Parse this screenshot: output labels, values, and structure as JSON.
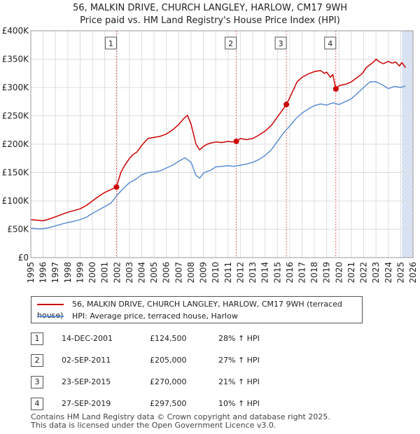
{
  "title": {
    "line1": "56, MALKIN DRIVE, CHURCH LANGLEY, HARLOW, CM17 9WH",
    "line2": "Price paid vs. HM Land Registry's House Price Index (HPI)"
  },
  "colors": {
    "property": "#cc0000",
    "hpi": "#5b8ed6",
    "marker": "#e06060",
    "shade": "#dde6f5",
    "grid": "#dddddd"
  },
  "chart_data": {
    "type": "line",
    "title": "56, MALKIN DRIVE, CHURCH LANGLEY, HARLOW, CM17 9WH — Price paid vs. HM Land Registry's House Price Index (HPI)",
    "xlabel": "",
    "ylabel": "",
    "xlim": [
      1995,
      2026
    ],
    "ylim": [
      0,
      400000
    ],
    "x_ticks": [
      "1995",
      "1996",
      "1997",
      "1998",
      "1999",
      "2000",
      "2001",
      "2002",
      "2003",
      "2004",
      "2005",
      "2006",
      "2007",
      "2008",
      "2009",
      "2010",
      "2011",
      "2012",
      "2013",
      "2014",
      "2015",
      "2016",
      "2017",
      "2018",
      "2019",
      "2020",
      "2021",
      "2022",
      "2023",
      "2024",
      "2025",
      "2026"
    ],
    "y_ticks": [
      {
        "value": 0,
        "label": "£0"
      },
      {
        "value": 50000,
        "label": "£50K"
      },
      {
        "value": 100000,
        "label": "£100K"
      },
      {
        "value": 150000,
        "label": "£150K"
      },
      {
        "value": 200000,
        "label": "£200K"
      },
      {
        "value": 250000,
        "label": "£250K"
      },
      {
        "value": 300000,
        "label": "£300K"
      },
      {
        "value": 350000,
        "label": "£350K"
      },
      {
        "value": 400000,
        "label": "£400K"
      }
    ],
    "grid": true,
    "future_shade_from": 2025.1,
    "series": [
      {
        "name": "56, MALKIN DRIVE, CHURCH LANGLEY, HARLOW, CM17 9WH (terraced house)",
        "color": "#cc0000",
        "x": [
          1995,
          1995.5,
          1996,
          1996.5,
          1997,
          1997.5,
          1998,
          1998.5,
          1999,
          1999.5,
          2000,
          2000.5,
          2001,
          2001.5,
          2001.95,
          2002.3,
          2002.6,
          2003,
          2003.3,
          2003.6,
          2004,
          2004.5,
          2005,
          2005.5,
          2006,
          2006.5,
          2007,
          2007.4,
          2007.7,
          2008,
          2008.4,
          2008.7,
          2009,
          2009.3,
          2009.6,
          2010,
          2010.5,
          2011,
          2011.3,
          2011.67,
          2012,
          2012.5,
          2013,
          2013.5,
          2014,
          2014.5,
          2015,
          2015.4,
          2015.73,
          2016,
          2016.3,
          2016.6,
          2017,
          2017.5,
          2018,
          2018.5,
          2018.8,
          2019,
          2019.3,
          2019.5,
          2019.74,
          2020,
          2020.3,
          2020.6,
          2021,
          2021.5,
          2021.9,
          2022.2,
          2022.5,
          2022.8,
          2023,
          2023.3,
          2023.6,
          2024,
          2024.3,
          2024.6,
          2024.9,
          2025.1,
          2025.4
        ],
        "values": [
          67000,
          66000,
          65000,
          68000,
          72000,
          76000,
          80000,
          83000,
          86000,
          92000,
          100000,
          108000,
          115000,
          120000,
          124500,
          150000,
          162000,
          175000,
          182000,
          186000,
          198000,
          210000,
          212000,
          214000,
          218000,
          225000,
          235000,
          245000,
          251000,
          235000,
          200000,
          190000,
          196000,
          200000,
          202000,
          204000,
          203000,
          205000,
          204000,
          205000,
          210000,
          208000,
          210000,
          216000,
          223000,
          233000,
          248000,
          260000,
          270000,
          282000,
          296000,
          310000,
          318000,
          324000,
          328000,
          330000,
          325000,
          327000,
          318000,
          323000,
          297500,
          303000,
          305000,
          306000,
          310000,
          318000,
          325000,
          335000,
          340000,
          345000,
          350000,
          345000,
          342000,
          346000,
          343000,
          345000,
          338000,
          344000,
          335000
        ]
      },
      {
        "name": "HPI: Average price, terraced house, Harlow",
        "color": "#5b8ed6",
        "x": [
          1995,
          1995.5,
          1996,
          1996.5,
          1997,
          1997.5,
          1998,
          1998.5,
          1999,
          1999.5,
          2000,
          2000.5,
          2001,
          2001.5,
          2002,
          2002.5,
          2003,
          2003.5,
          2004,
          2004.5,
          2005,
          2005.5,
          2006,
          2006.5,
          2007,
          2007.5,
          2008,
          2008.4,
          2008.7,
          2009,
          2009.3,
          2009.6,
          2010,
          2010.5,
          2011,
          2011.5,
          2012,
          2012.5,
          2013,
          2013.5,
          2014,
          2014.5,
          2015,
          2015.5,
          2016,
          2016.5,
          2017,
          2017.5,
          2018,
          2018.5,
          2019,
          2019.5,
          2020,
          2020.5,
          2021,
          2021.5,
          2022,
          2022.5,
          2023,
          2023.5,
          2024,
          2024.5,
          2025,
          2025.4
        ],
        "values": [
          52000,
          51000,
          51000,
          53000,
          56000,
          59000,
          62000,
          64000,
          67000,
          71000,
          78000,
          84000,
          90000,
          96000,
          110000,
          122000,
          132000,
          138000,
          146000,
          150000,
          151000,
          153000,
          158000,
          163000,
          170000,
          176000,
          168000,
          145000,
          140000,
          149000,
          152000,
          154000,
          160000,
          161000,
          162000,
          161000,
          163000,
          165000,
          168000,
          173000,
          180000,
          190000,
          205000,
          220000,
          232000,
          245000,
          255000,
          262000,
          268000,
          271000,
          269000,
          273000,
          270000,
          275000,
          280000,
          290000,
          300000,
          310000,
          310000,
          305000,
          298000,
          302000,
          300000,
          303000
        ]
      }
    ],
    "markers": [
      {
        "label": "1",
        "x": 2001.95,
        "value": 124500
      },
      {
        "label": "2",
        "x": 2011.67,
        "value": 205000
      },
      {
        "label": "3",
        "x": 2015.73,
        "value": 270000
      },
      {
        "label": "4",
        "x": 2019.74,
        "value": 297500
      }
    ]
  },
  "legend": {
    "property_label": "56, MALKIN DRIVE, CHURCH LANGLEY, HARLOW, CM17 9WH (terraced house)",
    "hpi_label": "HPI: Average price, terraced house, Harlow"
  },
  "sales": [
    {
      "num": "1",
      "date": "14-DEC-2001",
      "price": "£124,500",
      "hpi": "28% ↑ HPI"
    },
    {
      "num": "2",
      "date": "02-SEP-2011",
      "price": "£205,000",
      "hpi": "27% ↑ HPI"
    },
    {
      "num": "3",
      "date": "23-SEP-2015",
      "price": "£270,000",
      "hpi": "21% ↑ HPI"
    },
    {
      "num": "4",
      "date": "27-SEP-2019",
      "price": "£297,500",
      "hpi": "10% ↑ HPI"
    }
  ],
  "footer": {
    "line1": "Contains HM Land Registry data © Crown copyright and database right 2025.",
    "line2": "This data is licensed under the Open Government Licence v3.0."
  }
}
